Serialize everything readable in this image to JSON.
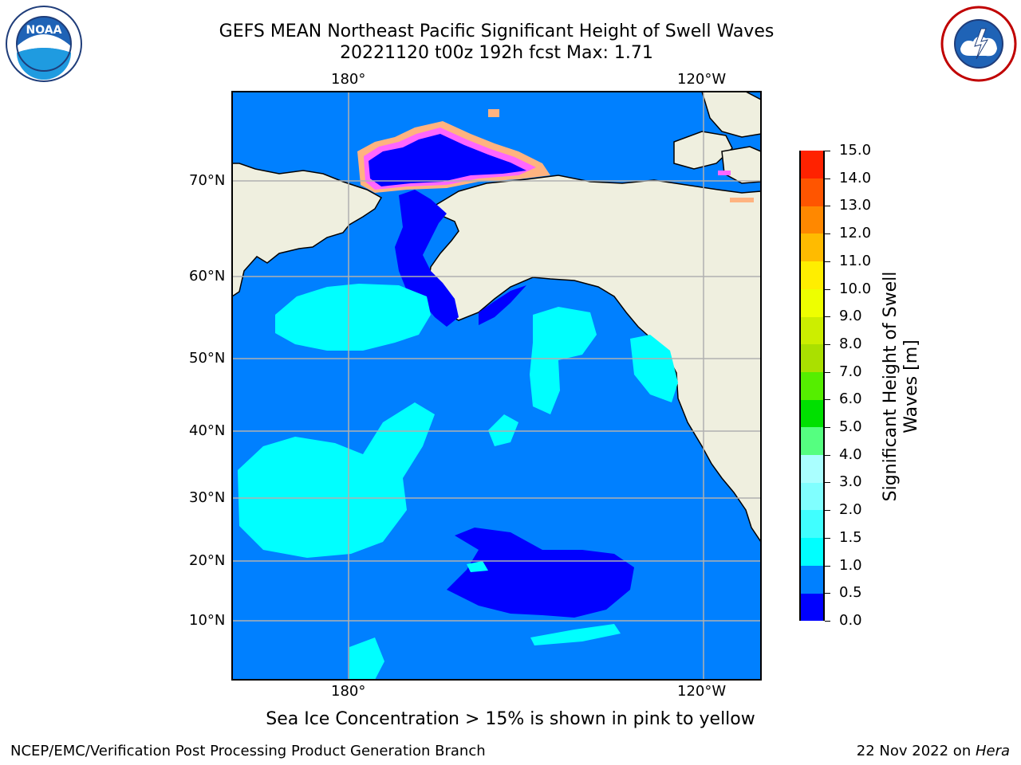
{
  "title": {
    "line1": "GEFS MEAN Northeast Pacific Significant Height of Swell Waves",
    "line2": "20221120 t00z 192h fcst   Max: 1.71"
  },
  "map": {
    "lon_labels": [
      "180°",
      "120°W"
    ],
    "lat_labels": [
      "70°N",
      "60°N",
      "50°N",
      "40°N",
      "30°N",
      "20°N",
      "10°N"
    ],
    "colors": {
      "ocean": "#0080ff",
      "calm": "#0000ff",
      "light": "#00ffff",
      "land": "#efefdf",
      "ice_edge": "#ff66ff",
      "ice_outer": "#ffb380"
    }
  },
  "colorbar": {
    "label_line1": "Significant Height of Swell",
    "label_line2": "Waves [m]",
    "ticks": [
      "0.0",
      "0.5",
      "1.0",
      "1.5",
      "2.0",
      "3.0",
      "4.0",
      "5.0",
      "6.0",
      "7.0",
      "8.0",
      "9.0",
      "10.0",
      "11.0",
      "12.0",
      "13.0",
      "14.0",
      "15.0"
    ],
    "colors": [
      "#0000ff",
      "#0080ff",
      "#00ffff",
      "#40ffff",
      "#80ffff",
      "#aaffff",
      "#55ff80",
      "#00e000",
      "#55ee00",
      "#aae000",
      "#ccee00",
      "#eeff00",
      "#ffee00",
      "#ffbb00",
      "#ff8800",
      "#ff5500",
      "#ff2200",
      "#ff0000"
    ]
  },
  "logos": {
    "left": "NOAA",
    "right": "NATIONAL WEATHER SERVICE"
  },
  "caption": "Sea Ice Concentration > 15% is shown in pink to yellow",
  "footer": {
    "left": "NCEP/EMC/Verification Post Processing Product Generation Branch",
    "right_prefix": "22 Nov 2022 on ",
    "right_host": "Hera"
  }
}
